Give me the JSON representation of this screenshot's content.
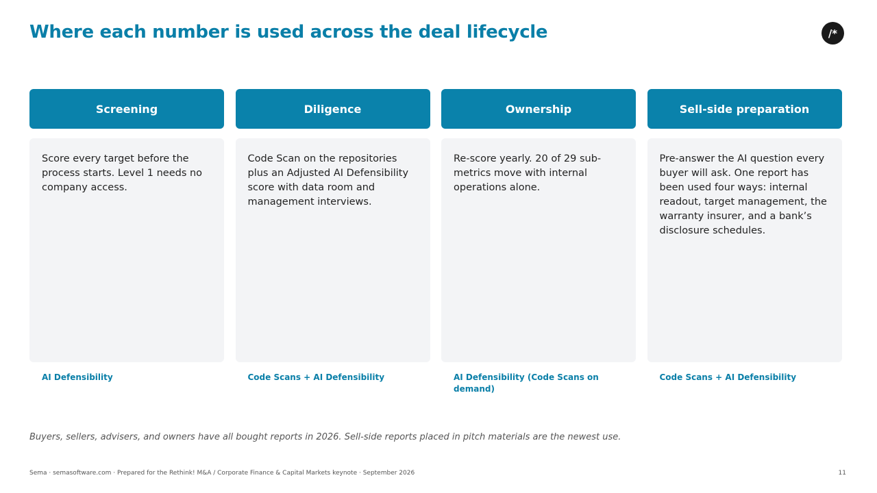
{
  "header": {
    "title": "Where each number is used across the deal lifecycle",
    "logo": "/*"
  },
  "columns": [
    {
      "title": "Screening",
      "body": "Score every target before the process starts. Level 1 needs no company access.",
      "tag": "AI Defensibility"
    },
    {
      "title": "Diligence",
      "body": "Code Scan on the repositories plus an Adjusted AI Defensibility score with data room and management interviews.",
      "tag": "Code Scans + AI Defensibility"
    },
    {
      "title": "Ownership",
      "body": "Re-score yearly. 20 of 29 sub-metrics move with internal operations alone.",
      "tag": "AI Defensibility (Code Scans on demand)"
    },
    {
      "title": "Sell-side preparation",
      "body": "Pre-answer the AI question every buyer will ask. One report has been used four ways: internal readout, target management, the warranty insurer, and a bank’s disclosure schedules.",
      "tag": "Code Scans + AI Defensibility"
    }
  ],
  "note": "Buyers, sellers, advisers, and owners have all bought reports in 2026. Sell-side reports placed in pitch materials are the newest use.",
  "footer": {
    "text": "Sema · semasoftware.com · Prepared for the Rethink! M&A / Corporate Finance & Capital Markets keynote · September 2026",
    "page": "11"
  }
}
